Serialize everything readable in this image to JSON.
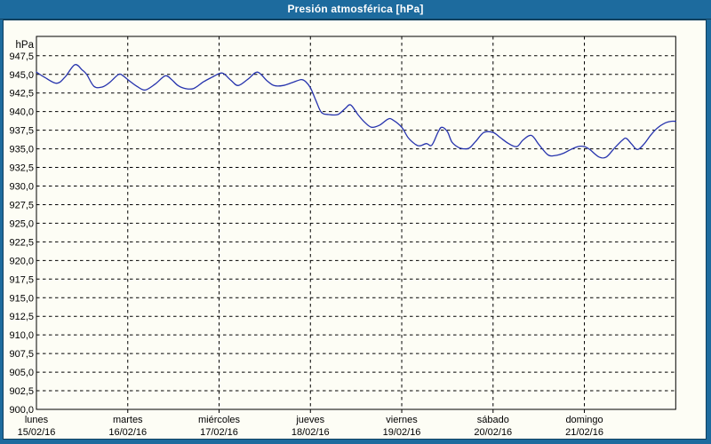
{
  "window": {
    "title": "Presión atmosférica [hPa]"
  },
  "colors": {
    "titlebar_bg": "#1D6B9E",
    "frame_border": "#10405E",
    "content_bg": "#FDFDF5",
    "grid": "#000000",
    "axis_text": "#000000",
    "title_text": "#FFFFFF",
    "line": "#2633AD"
  },
  "chart_data": {
    "type": "line",
    "title": "Presión atmosférica [hPa]",
    "ylabel": "hPa",
    "ylim": [
      900.0,
      950.1
    ],
    "ytick_step": 2.5,
    "grid": "dashed",
    "legend": "none",
    "y_tick_labels": [
      "947,5",
      "945,0",
      "942,5",
      "940,0",
      "937,5",
      "935,0",
      "932,5",
      "930,0",
      "927,5",
      "925,0",
      "922,5",
      "920,0",
      "917,5",
      "915,0",
      "912,5",
      "910,0",
      "907,5",
      "905,0",
      "902,5",
      "900,0"
    ],
    "y_tick_values": [
      947.5,
      945.0,
      942.5,
      940.0,
      937.5,
      935.0,
      932.5,
      930.0,
      927.5,
      925.0,
      922.5,
      920.0,
      917.5,
      915.0,
      912.5,
      910.0,
      907.5,
      905.0,
      902.5,
      900.0
    ],
    "x_categories": [
      {
        "day": "lunes",
        "date": "15/02/16"
      },
      {
        "day": "martes",
        "date": "16/02/16"
      },
      {
        "day": "miércoles",
        "date": "17/02/16"
      },
      {
        "day": "jueves",
        "date": "18/02/16"
      },
      {
        "day": "viernes",
        "date": "19/02/16"
      },
      {
        "day": "sábado",
        "date": "20/02/16"
      },
      {
        "day": "domingo",
        "date": "21/02/16"
      }
    ],
    "x_span_days": 7,
    "series": [
      {
        "name": "Presión atmosférica",
        "color": "#2633AD",
        "points": [
          [
            0.0,
            945.3
          ],
          [
            0.09,
            944.6
          ],
          [
            0.22,
            943.8
          ],
          [
            0.31,
            944.6
          ],
          [
            0.42,
            946.3
          ],
          [
            0.5,
            945.6
          ],
          [
            0.55,
            945.0
          ],
          [
            0.63,
            943.4
          ],
          [
            0.72,
            943.3
          ],
          [
            0.8,
            943.9
          ],
          [
            0.9,
            945.0
          ],
          [
            0.95,
            944.8
          ],
          [
            1.0,
            944.3
          ],
          [
            1.1,
            943.4
          ],
          [
            1.19,
            942.9
          ],
          [
            1.3,
            943.7
          ],
          [
            1.41,
            944.8
          ],
          [
            1.48,
            944.3
          ],
          [
            1.55,
            943.5
          ],
          [
            1.63,
            943.1
          ],
          [
            1.72,
            943.1
          ],
          [
            1.83,
            944.0
          ],
          [
            1.92,
            944.6
          ],
          [
            2.0,
            945.1
          ],
          [
            2.05,
            945.1
          ],
          [
            2.13,
            944.2
          ],
          [
            2.21,
            943.5
          ],
          [
            2.32,
            944.4
          ],
          [
            2.42,
            945.3
          ],
          [
            2.52,
            944.2
          ],
          [
            2.6,
            943.5
          ],
          [
            2.7,
            943.5
          ],
          [
            2.8,
            943.9
          ],
          [
            2.9,
            944.3
          ],
          [
            2.95,
            944.0
          ],
          [
            3.0,
            943.2
          ],
          [
            3.06,
            941.5
          ],
          [
            3.12,
            939.9
          ],
          [
            3.2,
            939.6
          ],
          [
            3.3,
            939.6
          ],
          [
            3.38,
            940.4
          ],
          [
            3.44,
            940.9
          ],
          [
            3.52,
            939.6
          ],
          [
            3.6,
            938.5
          ],
          [
            3.67,
            937.9
          ],
          [
            3.76,
            938.2
          ],
          [
            3.85,
            939.0
          ],
          [
            3.9,
            938.9
          ],
          [
            4.0,
            937.9
          ],
          [
            4.07,
            936.5
          ],
          [
            4.15,
            935.6
          ],
          [
            4.2,
            935.4
          ],
          [
            4.27,
            935.7
          ],
          [
            4.33,
            935.5
          ],
          [
            4.4,
            937.3
          ],
          [
            4.44,
            937.9
          ],
          [
            4.5,
            937.3
          ],
          [
            4.55,
            935.9
          ],
          [
            4.62,
            935.2
          ],
          [
            4.68,
            935.0
          ],
          [
            4.74,
            935.1
          ],
          [
            4.81,
            936.0
          ],
          [
            4.9,
            937.2
          ],
          [
            5.0,
            937.2
          ],
          [
            5.08,
            936.5
          ],
          [
            5.17,
            935.7
          ],
          [
            5.26,
            935.3
          ],
          [
            5.33,
            936.2
          ],
          [
            5.42,
            936.8
          ],
          [
            5.5,
            935.6
          ],
          [
            5.6,
            934.2
          ],
          [
            5.68,
            934.1
          ],
          [
            5.77,
            934.4
          ],
          [
            5.85,
            934.9
          ],
          [
            5.93,
            935.3
          ],
          [
            6.0,
            935.3
          ],
          [
            6.06,
            934.9
          ],
          [
            6.16,
            933.9
          ],
          [
            6.24,
            933.9
          ],
          [
            6.33,
            935.1
          ],
          [
            6.42,
            936.2
          ],
          [
            6.46,
            936.4
          ],
          [
            6.52,
            935.6
          ],
          [
            6.58,
            934.9
          ],
          [
            6.65,
            935.6
          ],
          [
            6.73,
            936.9
          ],
          [
            6.81,
            937.9
          ],
          [
            6.89,
            938.5
          ],
          [
            6.95,
            938.7
          ],
          [
            7.0,
            938.7
          ]
        ]
      }
    ]
  }
}
